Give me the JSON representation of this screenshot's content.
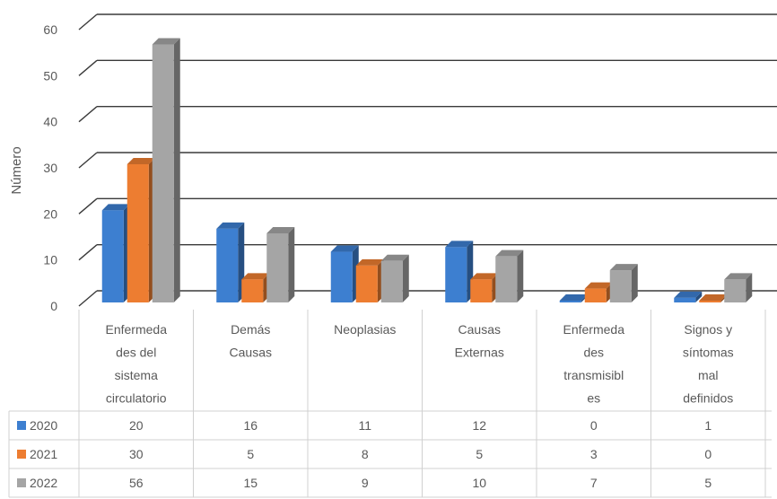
{
  "chart_data": {
    "type": "bar",
    "ylabel": "Número",
    "ylim": [
      0,
      60
    ],
    "yticks": [
      "0",
      "10",
      "20",
      "30",
      "40",
      "50",
      "60"
    ],
    "grid": true,
    "legend_placement": "data-table-left",
    "categories": [
      [
        "Enfermeda",
        "des del",
        "sistema",
        "circulatorio"
      ],
      [
        "Demás",
        "Causas"
      ],
      [
        "Neoplasias"
      ],
      [
        "Causas",
        "Externas"
      ],
      [
        "Enfermeda",
        "des",
        "transmisibl",
        "es"
      ],
      [
        "Signos y",
        "síntomas",
        "mal",
        "definidos"
      ]
    ],
    "series": [
      {
        "name": "2020",
        "color": "#3d7fd0",
        "values": [
          20,
          16,
          11,
          12,
          0,
          1
        ],
        "labels": [
          "20",
          "16",
          "11",
          "12",
          "0",
          "1"
        ]
      },
      {
        "name": "2021",
        "color": "#ed7d31",
        "values": [
          30,
          5,
          8,
          5,
          3,
          0
        ],
        "labels": [
          "30",
          "5",
          "8",
          "5",
          "3",
          "0"
        ]
      },
      {
        "name": "2022",
        "color": "#a5a5a5",
        "values": [
          56,
          15,
          9,
          10,
          7,
          5
        ],
        "labels": [
          "56",
          "15",
          "9",
          "10",
          "7",
          "5"
        ]
      }
    ]
  }
}
